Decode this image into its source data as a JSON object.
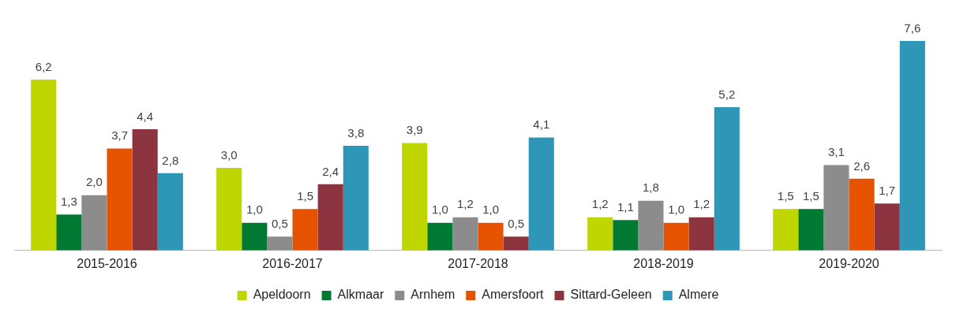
{
  "chart_data": {
    "type": "bar",
    "categories": [
      "2015-2016",
      "2016-2017",
      "2017-2018",
      "2018-2019",
      "2019-2020"
    ],
    "series": [
      {
        "name": "Apeldoorn",
        "color": "#bfd600",
        "values": [
          6.2,
          3.0,
          3.9,
          1.2,
          1.5
        ],
        "value_labels": [
          "6,2",
          "3,0",
          "3,9",
          "1,2",
          "1,5"
        ]
      },
      {
        "name": "Alkmaar",
        "color": "#007a33",
        "values": [
          1.3,
          1.0,
          1.0,
          1.1,
          1.5
        ],
        "value_labels": [
          "1,3",
          "1,0",
          "1,0",
          "1,1",
          "1,5"
        ]
      },
      {
        "name": "Arnhem",
        "color": "#8c8c8c",
        "values": [
          2.0,
          0.5,
          1.2,
          1.8,
          3.1
        ],
        "value_labels": [
          "2,0",
          "0,5",
          "1,2",
          "1,8",
          "3,1"
        ]
      },
      {
        "name": "Amersfoort",
        "color": "#e55300",
        "values": [
          3.7,
          1.5,
          1.0,
          1.0,
          2.6
        ],
        "value_labels": [
          "3,7",
          "1,5",
          "1,0",
          "1,0",
          "2,6"
        ]
      },
      {
        "name": "Sittard-Geleen",
        "color": "#8c3440",
        "values": [
          4.4,
          2.4,
          0.5,
          1.2,
          1.7
        ],
        "value_labels": [
          "4,4",
          "2,4",
          "0,5",
          "1,2",
          "1,7"
        ]
      },
      {
        "name": "Almere",
        "color": "#2e97b7",
        "values": [
          2.8,
          3.8,
          4.1,
          5.2,
          7.6
        ],
        "value_labels": [
          "2,8",
          "3,8",
          "4,1",
          "5,2",
          "7,6"
        ]
      }
    ],
    "grid": false,
    "legend": "bottom"
  }
}
